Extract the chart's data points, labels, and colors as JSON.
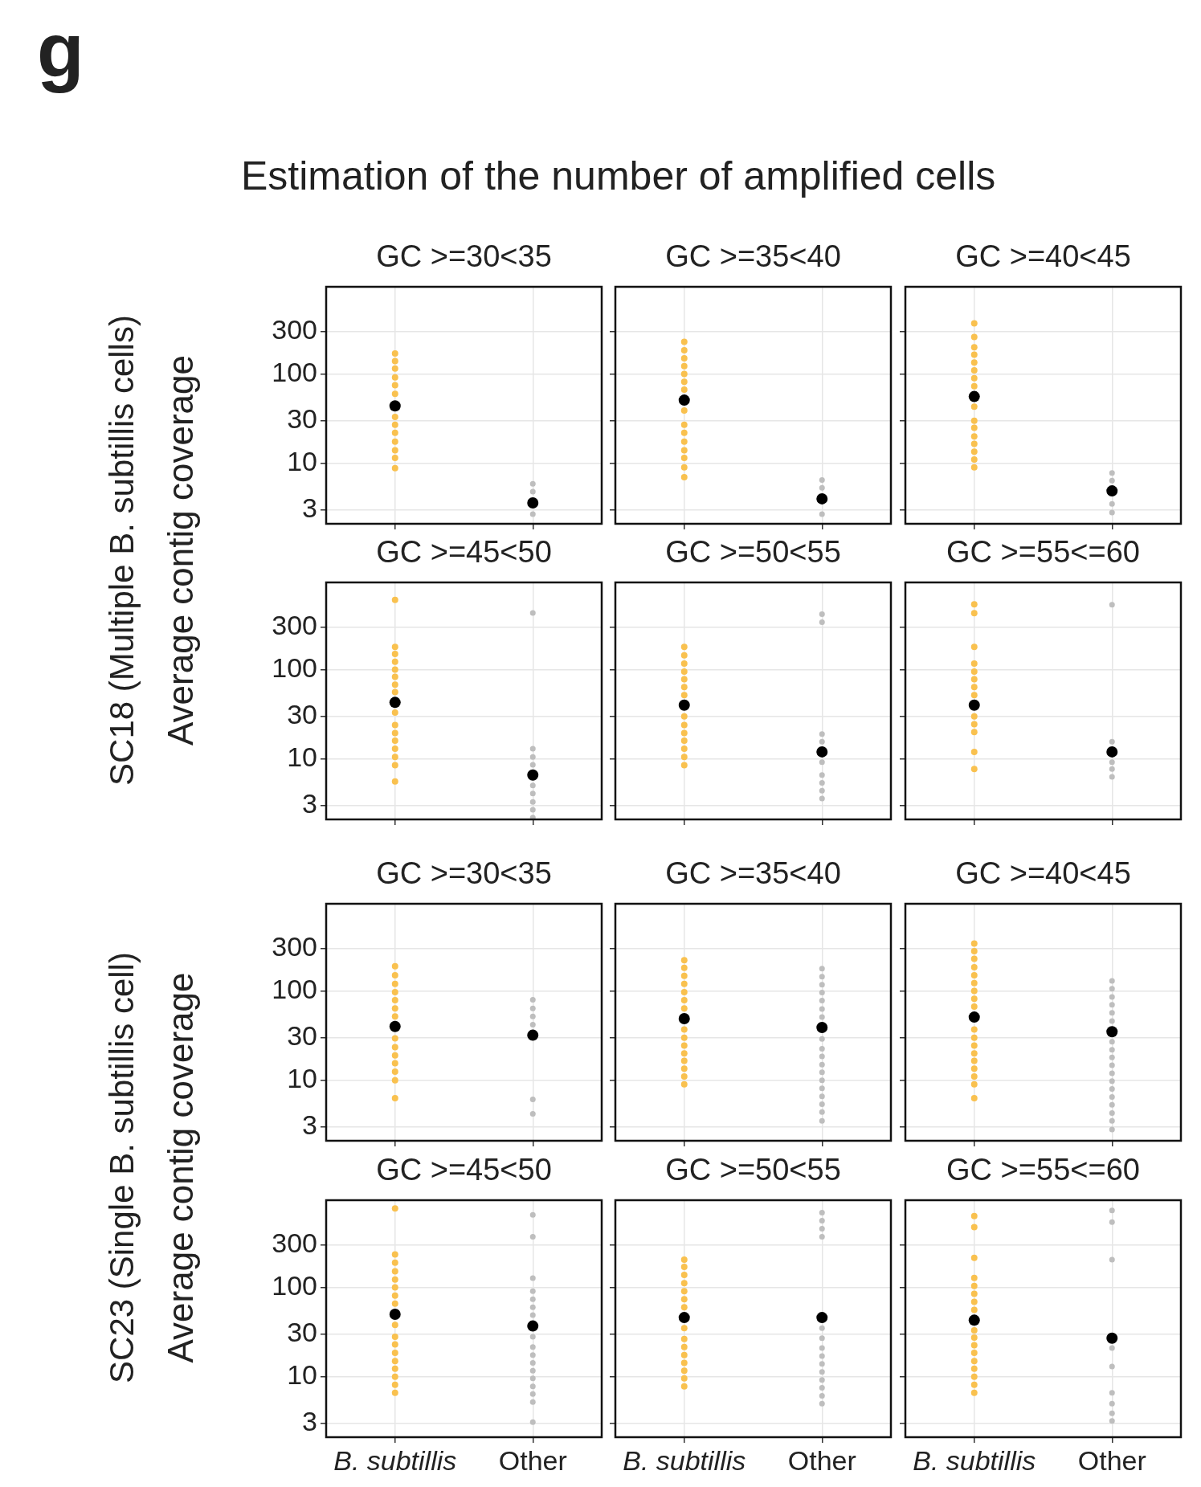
{
  "chart_data": [
    {
      "type": "scatter",
      "title": "GC >=30<35",
      "ylabel": "Average contig coverage",
      "annotations": [
        "g",
        "Estimation of the number of amplified cells",
        "SC18 (Multiple B. subtillis cells)"
      ],
      "categories": [
        "B. subtillis",
        "Other"
      ],
      "ylim": [
        2.1,
        950
      ],
      "yticks": [
        3,
        10,
        30,
        100,
        300
      ],
      "log": "y",
      "grid": true,
      "tick_labels": "y",
      "series": [
        {
          "color": "#f9c14f",
          "x": [
            "B. subtillis",
            "B. subtillis",
            "B. subtillis",
            "B. subtillis",
            "B. subtillis",
            "B. subtillis",
            "B. subtillis",
            "B. subtillis",
            "B. subtillis",
            "B. subtillis",
            "B. subtillis",
            "B. subtillis",
            "B. subtillis"
          ],
          "values": [
            8.8,
            11.5,
            14,
            17.5,
            22,
            27,
            33,
            60,
            75,
            92,
            115,
            140,
            170
          ]
        },
        {
          "color": "#bebebe",
          "x": [
            "Other",
            "Other",
            "Other"
          ],
          "values": [
            2.7,
            4.8,
            5.9
          ]
        },
        {
          "color": "#000000",
          "x": [
            "B. subtillis",
            "Other"
          ],
          "values": [
            44,
            3.6
          ]
        }
      ]
    },
    {
      "type": "scatter",
      "title": "GC >=35<40",
      "categories": [
        "B. subtillis",
        "Other"
      ],
      "ylim": [
        2.1,
        950
      ],
      "yticks": [
        3,
        10,
        30,
        100,
        300
      ],
      "log": "y",
      "grid": true,
      "tick_labels": false,
      "series": [
        {
          "color": "#f9c14f",
          "x": [
            "B. subtillis",
            "B. subtillis",
            "B. subtillis",
            "B. subtillis",
            "B. subtillis",
            "B. subtillis",
            "B. subtillis",
            "B. subtillis",
            "B. subtillis",
            "B. subtillis",
            "B. subtillis",
            "B. subtillis",
            "B. subtillis",
            "B. subtillis",
            "B. subtillis"
          ],
          "values": [
            7,
            9,
            11.5,
            14,
            17.5,
            22,
            27,
            39,
            67,
            82,
            100,
            123,
            150,
            185,
            230
          ]
        },
        {
          "color": "#bebebe",
          "x": [
            "Other",
            "Other",
            "Other"
          ],
          "values": [
            2.7,
            5.3,
            6.5
          ]
        },
        {
          "color": "#000000",
          "x": [
            "B. subtillis",
            "Other"
          ],
          "values": [
            51,
            4.0
          ]
        }
      ]
    },
    {
      "type": "scatter",
      "title": "GC >=40<45",
      "categories": [
        "B. subtillis",
        "Other"
      ],
      "ylim": [
        2.1,
        950
      ],
      "yticks": [
        3,
        10,
        30,
        100,
        300
      ],
      "log": "y",
      "grid": true,
      "tick_labels": false,
      "series": [
        {
          "color": "#f9c14f",
          "x": [
            "B. subtillis",
            "B. subtillis",
            "B. subtillis",
            "B. subtillis",
            "B. subtillis",
            "B. subtillis",
            "B. subtillis",
            "B. subtillis",
            "B. subtillis",
            "B. subtillis",
            "B. subtillis",
            "B. subtillis",
            "B. subtillis",
            "B. subtillis",
            "B. subtillis",
            "B. subtillis"
          ],
          "values": [
            9,
            11,
            13.5,
            16.5,
            20,
            25,
            30,
            43,
            73,
            90,
            110,
            135,
            165,
            200,
            260,
            370
          ]
        },
        {
          "color": "#bebebe",
          "x": [
            "Other",
            "Other",
            "Other",
            "Other"
          ],
          "values": [
            2.8,
            3.5,
            6.4,
            7.8
          ]
        },
        {
          "color": "#000000",
          "x": [
            "B. subtillis",
            "Other"
          ],
          "values": [
            56,
            4.9
          ]
        }
      ]
    },
    {
      "type": "scatter",
      "title": "GC >=45<50",
      "categories": [
        "B. subtillis",
        "Other"
      ],
      "ylim": [
        2.1,
        950
      ],
      "yticks": [
        3,
        10,
        30,
        100,
        300
      ],
      "log": "y",
      "grid": true,
      "tick_labels": "y",
      "series": [
        {
          "color": "#f9c14f",
          "x": [
            "B. subtillis",
            "B. subtillis",
            "B. subtillis",
            "B. subtillis",
            "B. subtillis",
            "B. subtillis",
            "B. subtillis",
            "B. subtillis",
            "B. subtillis",
            "B. subtillis",
            "B. subtillis",
            "B. subtillis",
            "B. subtillis",
            "B. subtillis",
            "B. subtillis",
            "B. subtillis"
          ],
          "values": [
            5.6,
            8.5,
            10.5,
            13,
            16,
            19.5,
            24,
            33,
            56,
            68,
            83,
            100,
            123,
            150,
            180,
            604
          ]
        },
        {
          "color": "#bebebe",
          "x": [
            "Other",
            "Other",
            "Other",
            "Other",
            "Other",
            "Other",
            "Other",
            "Other",
            "Other"
          ],
          "values": [
            2.2,
            2.7,
            3.3,
            4.1,
            5.05,
            8.6,
            10.5,
            13,
            432
          ]
        },
        {
          "color": "#000000",
          "x": [
            "B. subtillis",
            "Other"
          ],
          "values": [
            43,
            6.6
          ]
        }
      ]
    },
    {
      "type": "scatter",
      "title": "GC >=50<55",
      "categories": [
        "B. subtillis",
        "Other"
      ],
      "ylim": [
        2.1,
        950
      ],
      "yticks": [
        3,
        10,
        30,
        100,
        300
      ],
      "log": "y",
      "grid": true,
      "tick_labels": false,
      "series": [
        {
          "color": "#f9c14f",
          "x": [
            "B. subtillis",
            "B. subtillis",
            "B. subtillis",
            "B. subtillis",
            "B. subtillis",
            "B. subtillis",
            "B. subtillis",
            "B. subtillis",
            "B. subtillis",
            "B. subtillis",
            "B. subtillis",
            "B. subtillis",
            "B. subtillis",
            "B. subtillis"
          ],
          "values": [
            8.5,
            10.5,
            13,
            16,
            19.5,
            24,
            30,
            52,
            64,
            78,
            95,
            117,
            145,
            180
          ]
        },
        {
          "color": "#bebebe",
          "x": [
            "Other",
            "Other",
            "Other",
            "Other",
            "Other",
            "Other",
            "Other",
            "Other",
            "Other"
          ],
          "values": [
            3.6,
            4.4,
            5.4,
            6.6,
            9.2,
            15.6,
            19,
            340,
            420
          ]
        },
        {
          "color": "#000000",
          "x": [
            "B. subtillis",
            "Other"
          ],
          "values": [
            40,
            12
          ]
        }
      ]
    },
    {
      "type": "scatter",
      "title": "GC >=55<=60",
      "categories": [
        "B. subtillis",
        "Other"
      ],
      "ylim": [
        2.1,
        950
      ],
      "yticks": [
        3,
        10,
        30,
        100,
        300
      ],
      "log": "y",
      "grid": true,
      "tick_labels": false,
      "series": [
        {
          "color": "#f9c14f",
          "x": [
            "B. subtillis",
            "B. subtillis",
            "B. subtillis",
            "B. subtillis",
            "B. subtillis",
            "B. subtillis",
            "B. subtillis",
            "B. subtillis",
            "B. subtillis",
            "B. subtillis",
            "B. subtillis",
            "B. subtillis",
            "B. subtillis"
          ],
          "values": [
            7.7,
            12,
            20,
            24.5,
            30,
            52,
            64,
            78,
            95,
            117,
            180,
            430,
            540
          ]
        },
        {
          "color": "#bebebe",
          "x": [
            "Other",
            "Other",
            "Other",
            "Other",
            "Other"
          ],
          "values": [
            6.3,
            7.7,
            9.2,
            15.6,
            535
          ]
        },
        {
          "color": "#000000",
          "x": [
            "B. subtillis",
            "Other"
          ],
          "values": [
            40,
            12
          ]
        }
      ]
    },
    {
      "type": "scatter",
      "title": "GC >=30<35",
      "ylabel": "Average contig coverage",
      "annotations": [
        "SC23 (Single B. subtillis cell)"
      ],
      "categories": [
        "B. subtillis",
        "Other"
      ],
      "ylim": [
        2.1,
        950
      ],
      "yticks": [
        3,
        10,
        30,
        100,
        300
      ],
      "log": "y",
      "grid": true,
      "tick_labels": "y",
      "series": [
        {
          "color": "#f9c14f",
          "x": [
            "B. subtillis",
            "B. subtillis",
            "B. subtillis",
            "B. subtillis",
            "B. subtillis",
            "B. subtillis",
            "B. subtillis",
            "B. subtillis",
            "B. subtillis",
            "B. subtillis",
            "B. subtillis",
            "B. subtillis",
            "B. subtillis",
            "B. subtillis"
          ],
          "values": [
            6.3,
            10,
            12.5,
            15.5,
            19,
            23.5,
            29.5,
            52,
            64,
            79,
            97,
            120,
            150,
            190
          ]
        },
        {
          "color": "#bebebe",
          "x": [
            "Other",
            "Other",
            "Other",
            "Other",
            "Other",
            "Other"
          ],
          "values": [
            4.2,
            6.1,
            42,
            52,
            64,
            80
          ]
        },
        {
          "color": "#000000",
          "x": [
            "B. subtillis",
            "Other"
          ],
          "values": [
            40,
            32
          ]
        }
      ]
    },
    {
      "type": "scatter",
      "title": "GC >=35<40",
      "categories": [
        "B. subtillis",
        "Other"
      ],
      "ylim": [
        2.1,
        950
      ],
      "yticks": [
        3,
        10,
        30,
        100,
        300
      ],
      "log": "y",
      "grid": true,
      "tick_labels": false,
      "series": [
        {
          "color": "#f9c14f",
          "x": [
            "B. subtillis",
            "B. subtillis",
            "B. subtillis",
            "B. subtillis",
            "B. subtillis",
            "B. subtillis",
            "B. subtillis",
            "B. subtillis",
            "B. subtillis",
            "B. subtillis",
            "B. subtillis",
            "B. subtillis",
            "B. subtillis",
            "B. subtillis",
            "B. subtillis"
          ],
          "values": [
            9,
            11,
            13.5,
            16.5,
            20,
            24.5,
            30,
            37,
            64,
            79,
            97,
            120,
            148,
            182,
            222
          ]
        },
        {
          "color": "#bebebe",
          "x": [
            "Other",
            "Other",
            "Other",
            "Other",
            "Other",
            "Other",
            "Other",
            "Other",
            "Other",
            "Other",
            "Other",
            "Other",
            "Other",
            "Other",
            "Other",
            "Other",
            "Other",
            "Other"
          ],
          "values": [
            3.5,
            4.4,
            5.4,
            6.6,
            8.1,
            10,
            12.3,
            15,
            18.5,
            22.5,
            29,
            51,
            63,
            78,
            96,
            118,
            145,
            178
          ]
        },
        {
          "color": "#000000",
          "x": [
            "B. subtillis",
            "Other"
          ],
          "values": [
            49,
            39
          ]
        }
      ]
    },
    {
      "type": "scatter",
      "title": "GC >=40<45",
      "categories": [
        "B. subtillis",
        "Other"
      ],
      "ylim": [
        2.1,
        950
      ],
      "yticks": [
        3,
        10,
        30,
        100,
        300
      ],
      "log": "y",
      "grid": true,
      "tick_labels": false,
      "series": [
        {
          "color": "#f9c14f",
          "x": [
            "B. subtillis",
            "B. subtillis",
            "B. subtillis",
            "B. subtillis",
            "B. subtillis",
            "B. subtillis",
            "B. subtillis",
            "B. subtillis",
            "B. subtillis",
            "B. subtillis",
            "B. subtillis",
            "B. subtillis",
            "B. subtillis",
            "B. subtillis",
            "B. subtillis",
            "B. subtillis",
            "B. subtillis",
            "B. subtillis"
          ],
          "values": [
            6.3,
            9,
            11,
            13.5,
            16.5,
            20,
            24.5,
            30,
            37,
            67,
            82,
            100,
            123,
            150,
            185,
            230,
            280,
            340
          ]
        },
        {
          "color": "#bebebe",
          "x": [
            "Other",
            "Other",
            "Other",
            "Other",
            "Other",
            "Other",
            "Other",
            "Other",
            "Other",
            "Other",
            "Other",
            "Other",
            "Other",
            "Other",
            "Other",
            "Other",
            "Other",
            "Other"
          ],
          "values": [
            2.8,
            3.5,
            4.3,
            5.3,
            6.5,
            8,
            9.8,
            12,
            14.7,
            18,
            22,
            27,
            46,
            57,
            70,
            86,
            106,
            130
          ]
        },
        {
          "color": "#000000",
          "x": [
            "B. subtillis",
            "Other"
          ],
          "values": [
            51,
            35
          ]
        }
      ]
    },
    {
      "type": "scatter",
      "title": "GC >=45<50",
      "categories": [
        "B. subtillis",
        "Other"
      ],
      "ylim": [
        2.1,
        950
      ],
      "yticks": [
        3,
        10,
        30,
        100,
        300
      ],
      "log": "y",
      "grid": true,
      "series": [
        {
          "color": "#f9c14f",
          "x": [
            "B. subtillis",
            "B. subtillis",
            "B. subtillis",
            "B. subtillis",
            "B. subtillis",
            "B. subtillis",
            "B. subtillis",
            "B. subtillis",
            "B. subtillis",
            "B. subtillis",
            "B. subtillis",
            "B. subtillis",
            "B. subtillis",
            "B. subtillis",
            "B. subtillis",
            "B. subtillis",
            "B. subtillis"
          ],
          "values": [
            6.6,
            8.1,
            10,
            12.3,
            15,
            18.5,
            23,
            28,
            38,
            66,
            81,
            100,
            123,
            152,
            190,
            235,
            770
          ]
        },
        {
          "color": "#bebebe",
          "x": [
            "Other",
            "Other",
            "Other",
            "Other",
            "Other",
            "Other",
            "Other",
            "Other",
            "Other",
            "Other",
            "Other",
            "Other",
            "Other",
            "Other",
            "Other",
            "Other",
            "Other"
          ],
          "values": [
            3.1,
            5.2,
            6.4,
            7.8,
            9.6,
            11.7,
            14.3,
            17.5,
            21.5,
            28,
            49,
            60,
            74,
            91,
            127,
            370,
            650
          ]
        },
        {
          "color": "#000000",
          "x": [
            "B. subtillis",
            "Other"
          ],
          "values": [
            50,
            37
          ]
        }
      ]
    },
    {
      "type": "scatter",
      "title": "GC >=50<55",
      "categories": [
        "B. subtillis",
        "Other"
      ],
      "ylim": [
        2.1,
        950
      ],
      "yticks": [
        3,
        10,
        30,
        100,
        300
      ],
      "log": "y",
      "grid": true,
      "tick_labels": "x",
      "series": [
        {
          "color": "#f9c14f",
          "x": [
            "B. subtillis",
            "B. subtillis",
            "B. subtillis",
            "B. subtillis",
            "B. subtillis",
            "B. subtillis",
            "B. subtillis",
            "B. subtillis",
            "B. subtillis",
            "B. subtillis",
            "B. subtillis",
            "B. subtillis",
            "B. subtillis",
            "B. subtillis",
            "B. subtillis"
          ],
          "values": [
            7.8,
            9.6,
            11.7,
            14.3,
            17.5,
            21.5,
            26.5,
            35,
            60,
            74,
            91,
            112,
            138,
            170,
            205
          ]
        },
        {
          "color": "#bebebe",
          "x": [
            "Other",
            "Other",
            "Other",
            "Other",
            "Other",
            "Other",
            "Other",
            "Other",
            "Other",
            "Other",
            "Other",
            "Other",
            "Other",
            "Other"
          ],
          "values": [
            5,
            6.1,
            7.5,
            9.2,
            11.3,
            13.9,
            17,
            21,
            27,
            35,
            370,
            455,
            560,
            690
          ]
        },
        {
          "color": "#000000",
          "x": [
            "B. subtillis",
            "Other"
          ],
          "values": [
            46,
            46
          ]
        }
      ]
    },
    {
      "type": "scatter",
      "title": "GC >=55<=60",
      "categories": [
        "B. subtillis",
        "Other"
      ],
      "ylim": [
        2.1,
        950
      ],
      "yticks": [
        3,
        10,
        30,
        100,
        300
      ],
      "log": "y",
      "grid": true,
      "tick_labels": "x",
      "series": [
        {
          "color": "#f9c14f",
          "x": [
            "B. subtillis",
            "B. subtillis",
            "B. subtillis",
            "B. subtillis",
            "B. subtillis",
            "B. subtillis",
            "B. subtillis",
            "B. subtillis",
            "B. subtillis",
            "B. subtillis",
            "B. subtillis",
            "B. subtillis",
            "B. subtillis",
            "B. subtillis",
            "B. subtillis",
            "B. subtillis",
            "B. subtillis"
          ],
          "values": [
            6.6,
            8.1,
            10,
            12.3,
            15,
            18.5,
            22.5,
            27.5,
            33,
            56,
            69,
            85,
            104,
            128,
            215,
            475,
            630
          ]
        },
        {
          "color": "#bebebe",
          "x": [
            "Other",
            "Other",
            "Other",
            "Other",
            "Other",
            "Other",
            "Other",
            "Other",
            "Other"
          ],
          "values": [
            3.2,
            3.9,
            5,
            6.6,
            13,
            21,
            205,
            540,
            730
          ]
        },
        {
          "color": "#000000",
          "x": [
            "B. subtillis",
            "Other"
          ],
          "values": [
            43,
            27
          ]
        }
      ]
    }
  ]
}
